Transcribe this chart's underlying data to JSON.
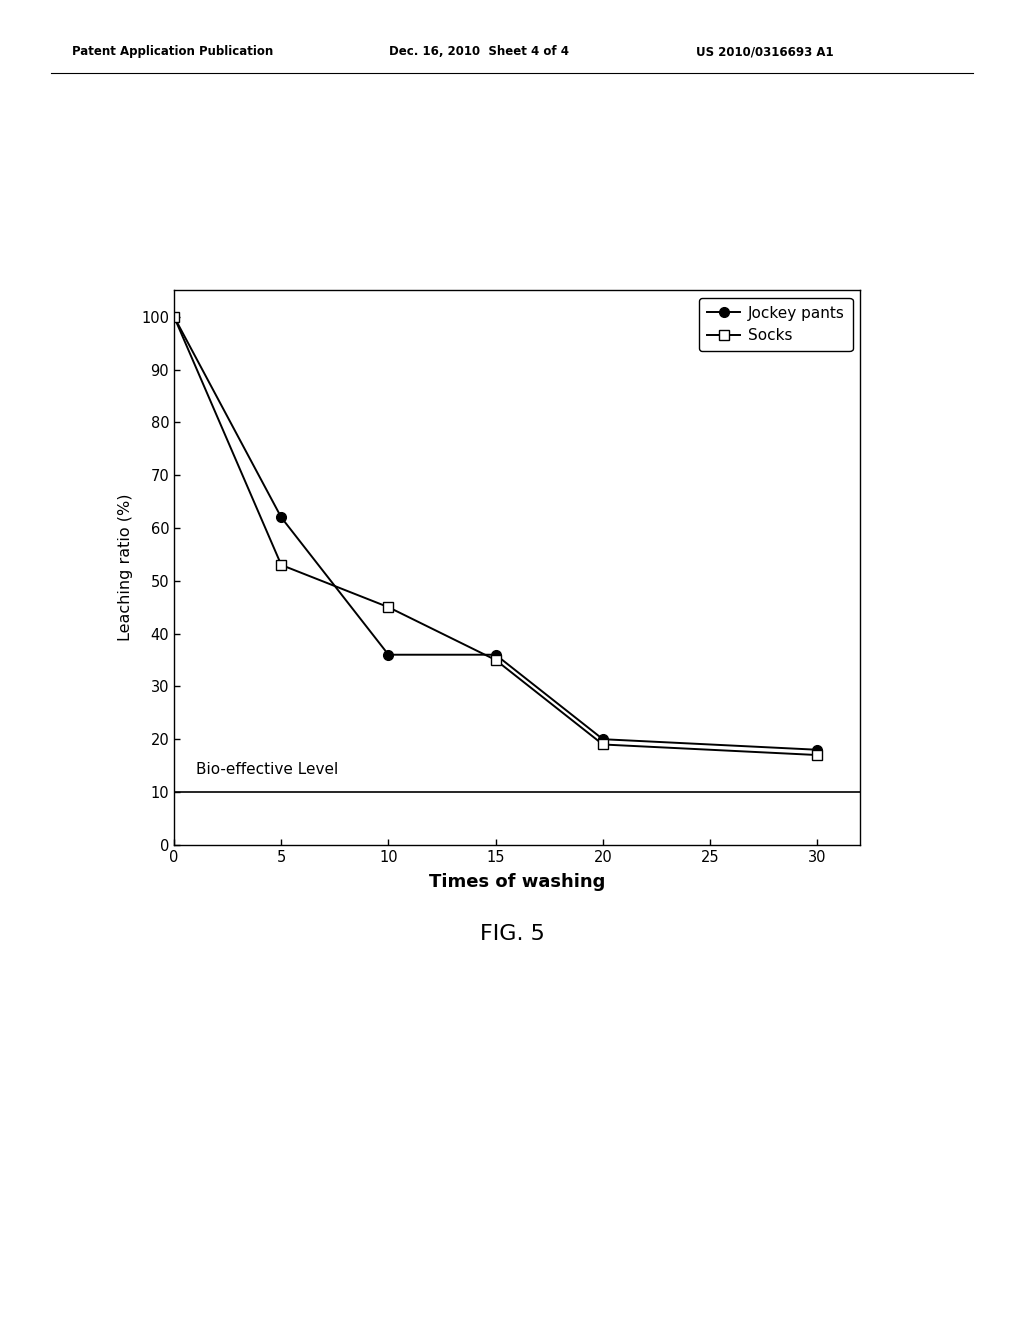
{
  "jockey_x": [
    0,
    5,
    10,
    15,
    20,
    30
  ],
  "jockey_y": [
    100,
    62,
    36,
    36,
    20,
    18
  ],
  "socks_x": [
    0,
    5,
    10,
    15,
    20,
    30
  ],
  "socks_y": [
    100,
    53,
    45,
    35,
    19,
    17
  ],
  "bio_effective_level": 10,
  "xlabel": "Times of washing",
  "ylabel": "Leaching ratio (%)",
  "title": "FIG. 5",
  "xlim": [
    0,
    32
  ],
  "ylim": [
    0,
    105
  ],
  "xticks": [
    0,
    5,
    10,
    15,
    20,
    25,
    30
  ],
  "yticks": [
    0,
    10,
    20,
    30,
    40,
    50,
    60,
    70,
    80,
    90,
    100
  ],
  "legend_jockey": "Jockey pants",
  "legend_socks": "Socks",
  "bio_label": "Bio-effective Level",
  "header_left": "Patent Application Publication",
  "header_mid": "Dec. 16, 2010  Sheet 4 of 4",
  "header_right": "US 2010/0316693 A1",
  "line_color": "#000000",
  "bg_color": "#ffffff"
}
